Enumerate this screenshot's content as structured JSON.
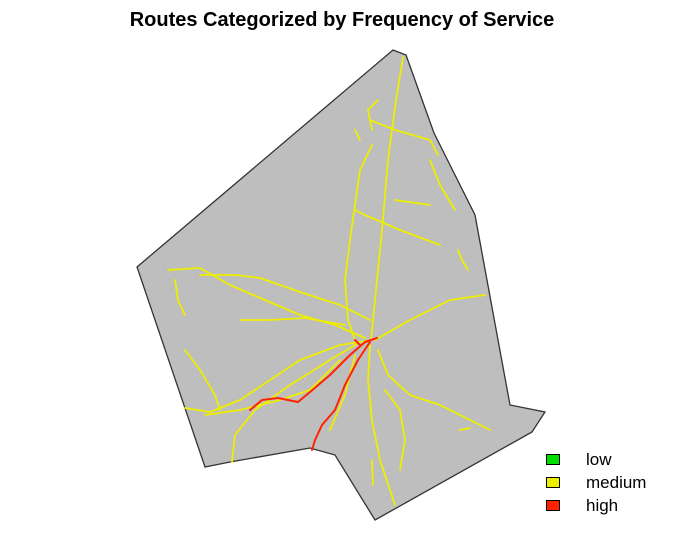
{
  "title": "Routes Categorized by Frequency of Service",
  "legend": {
    "items": [
      {
        "label": "low",
        "color": "#00dd00"
      },
      {
        "label": "medium",
        "color": "#eeee00"
      },
      {
        "label": "high",
        "color": "#ff2200"
      }
    ]
  },
  "map": {
    "region_fill": "#bebebe",
    "region_stroke": "#333333"
  }
}
